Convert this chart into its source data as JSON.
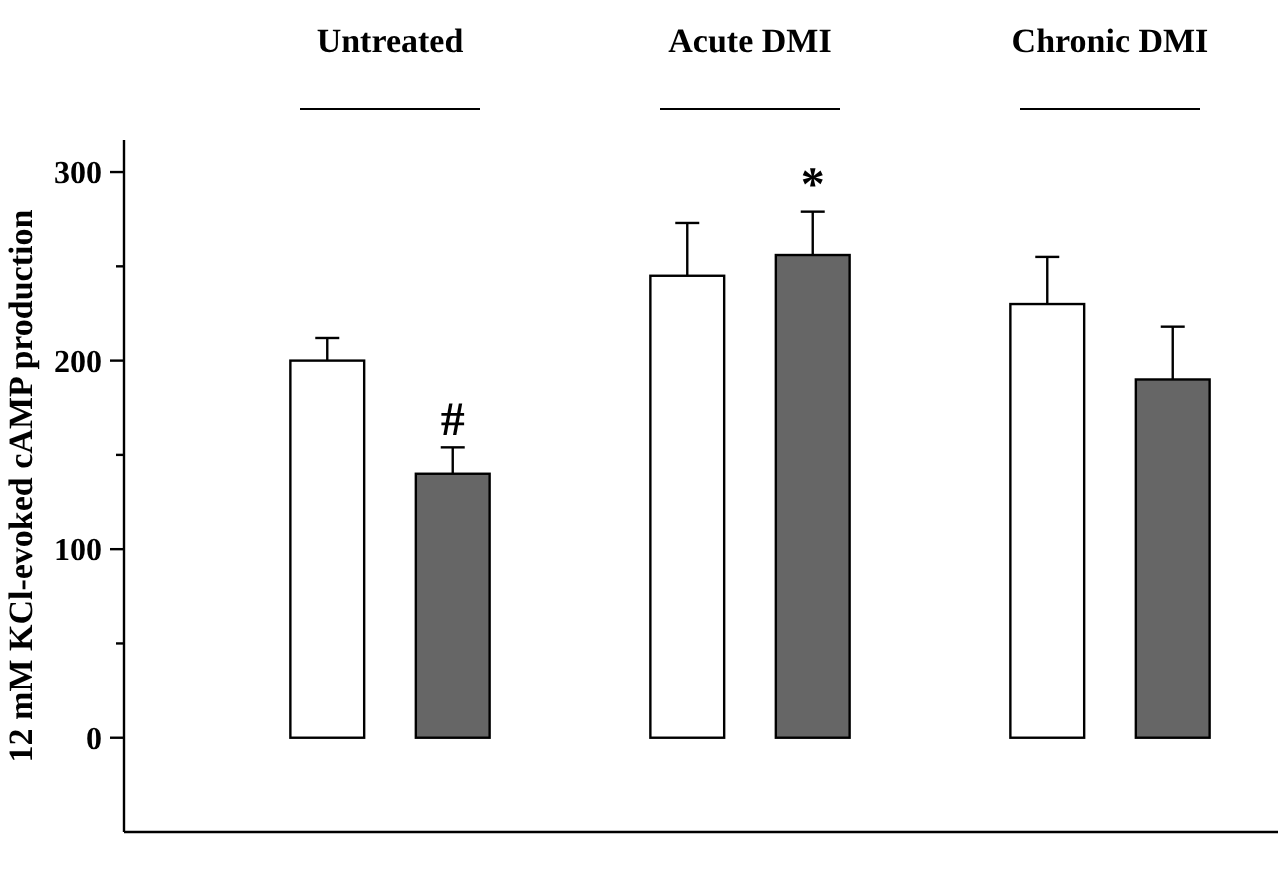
{
  "chart_data": {
    "type": "bar",
    "ylabel": "12 mM KCl-evoked cAMP production",
    "categories": [
      "Untreated",
      "Acute DMI",
      "Chronic DMI"
    ],
    "series": [
      {
        "color": "#ffffff",
        "values": [
          200,
          245,
          230
        ],
        "errors": [
          [
            200,
            212
          ],
          [
            245,
            273
          ],
          [
            230,
            255
          ]
        ]
      },
      {
        "color": "#666666",
        "values": [
          140,
          256,
          190
        ],
        "errors": [
          [
            140,
            154
          ],
          [
            256,
            279
          ],
          [
            190,
            218
          ]
        ]
      }
    ],
    "ylim": [
      -50,
      317
    ],
    "yticks": [
      0,
      {
        "value": 50,
        "label": null
      },
      100,
      {
        "value": 150,
        "label": null
      },
      200,
      {
        "value": 250,
        "label": null
      },
      300
    ],
    "annotations": [
      "#",
      "*"
    ],
    "grid": false
  }
}
